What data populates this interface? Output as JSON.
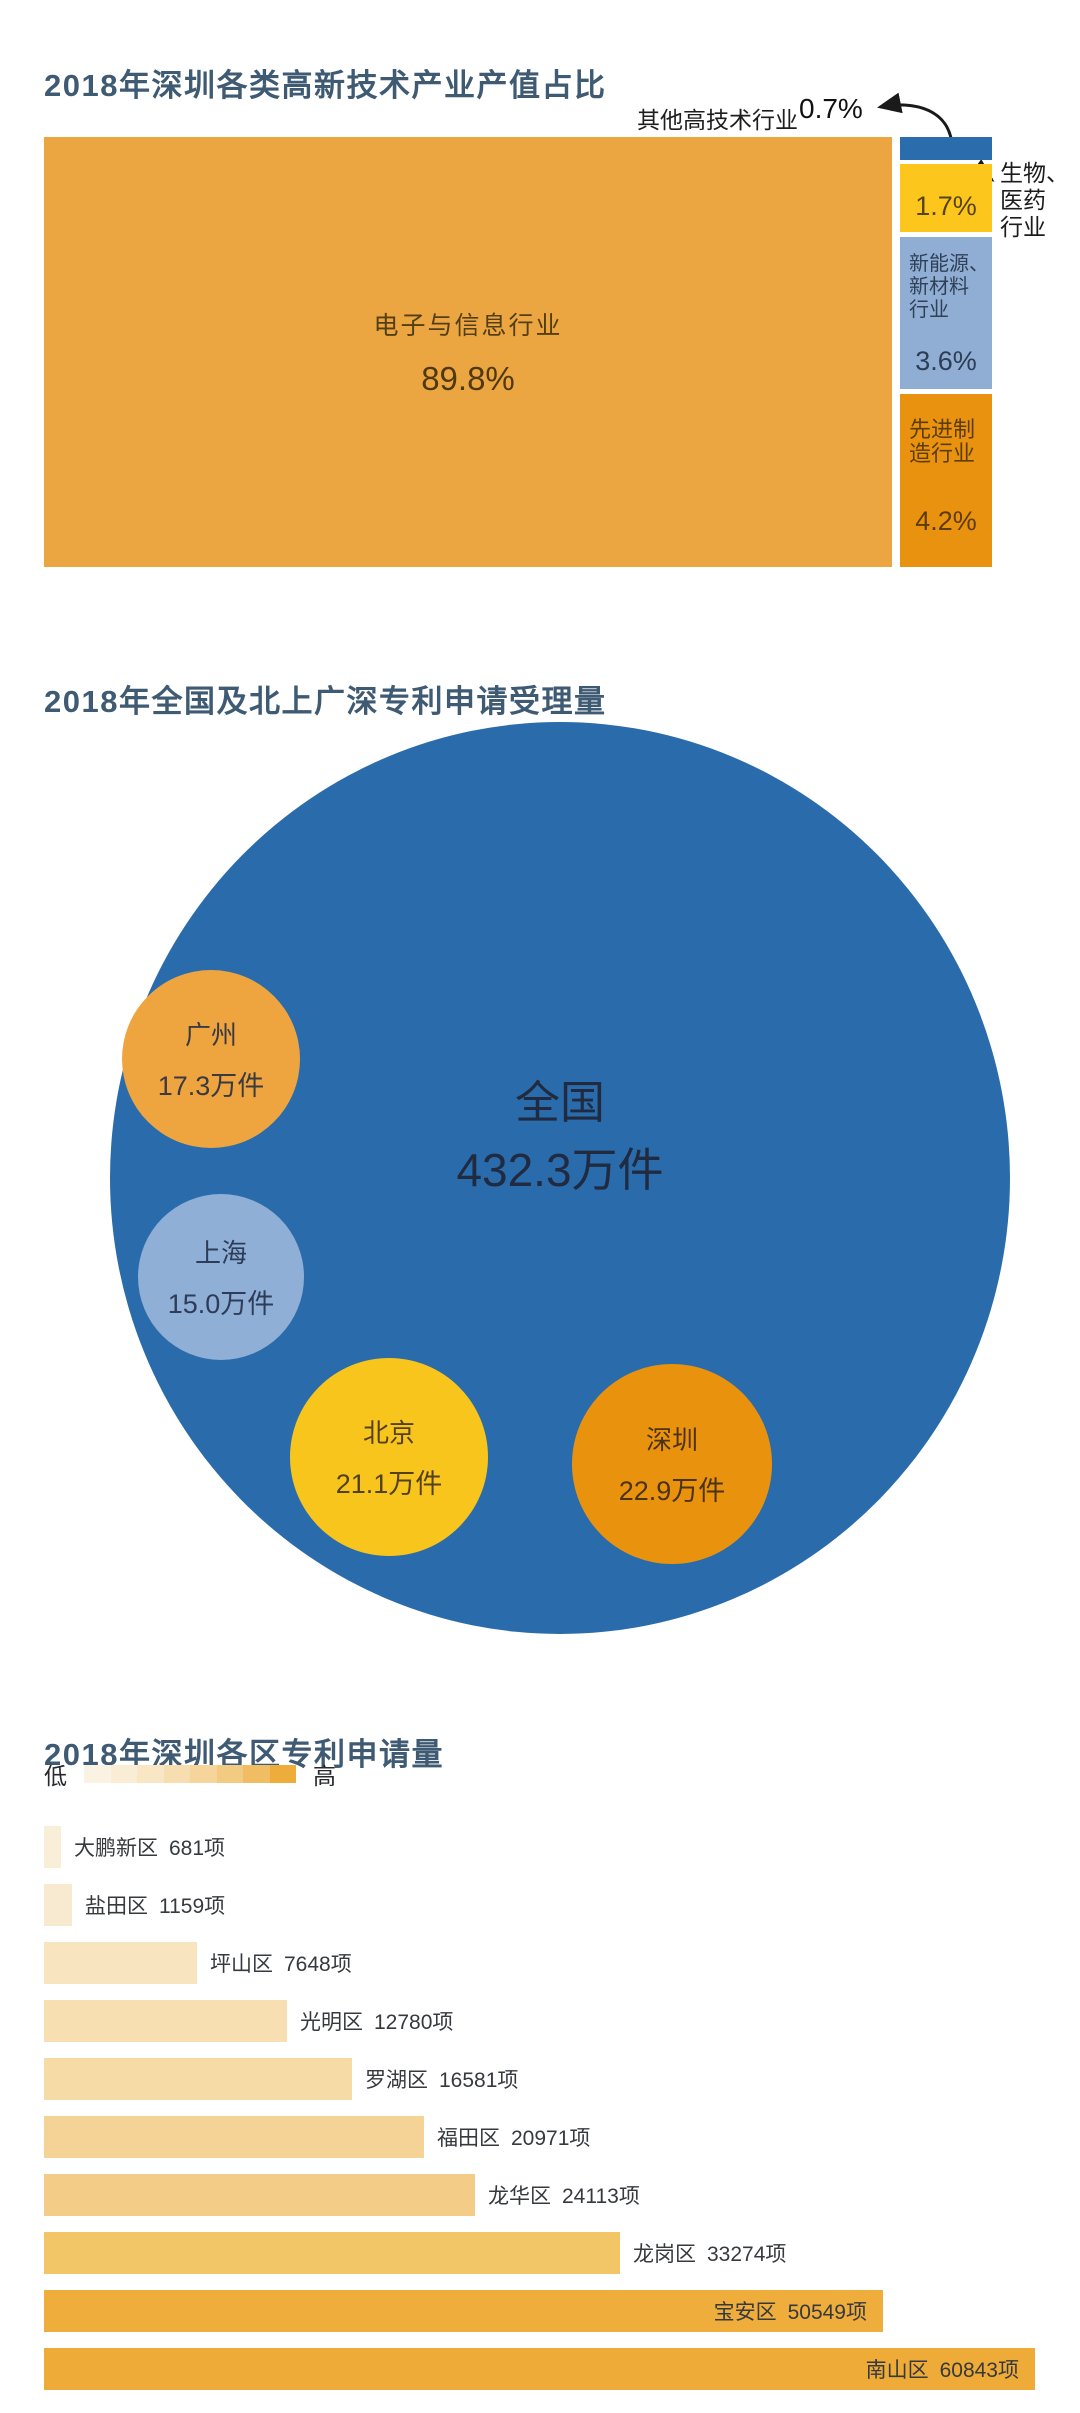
{
  "treemap_section": {
    "title": "2018年深圳各类高新技术产业产值占比",
    "annotation": {
      "label": "其他高技术行业",
      "value": "0.7%"
    },
    "main_block": {
      "label": "电子与信息行业",
      "value": "89.8%",
      "color": "#eca641"
    },
    "side_blocks": [
      {
        "name": "其他高技术行业",
        "value": "0.7%",
        "color": "#2b6dac"
      },
      {
        "name": "生物、医药行业",
        "value": "1.7%",
        "color": "#fcc61d",
        "external_label": "生物、\n医药\n行业"
      },
      {
        "name": "新能源、新材料行业",
        "value": "3.6%",
        "color": "#90aed4",
        "label_lines": "新能源、\n新材料\n行业"
      },
      {
        "name": "先进制造行业",
        "value": "4.2%",
        "color": "#e8920f",
        "label_lines": "先进制\n造行业"
      }
    ]
  },
  "bubble_section": {
    "title": "2018年全国及北上广深专利申请受理量",
    "bubbles": [
      {
        "name": "全国",
        "value": "432.3万件",
        "color": "#2a6cab"
      },
      {
        "name": "广州",
        "value": "17.3万件",
        "color": "#efa53f"
      },
      {
        "name": "上海",
        "value": "15.0万件",
        "color": "#90afd6"
      },
      {
        "name": "北京",
        "value": "21.1万件",
        "color": "#f8c51c"
      },
      {
        "name": "深圳",
        "value": "22.9万件",
        "color": "#e9920e"
      }
    ]
  },
  "bar_section": {
    "title": "2018年深圳各区专利申请量",
    "legend": {
      "low": "低",
      "high": "高",
      "colors": [
        "#faf2e3",
        "#f9edd6",
        "#f8e6c5",
        "#f6deb1",
        "#f5d59b",
        "#f3ca82",
        "#f0bd62",
        "#eeac3a"
      ]
    },
    "bars": [
      {
        "district": "大鹏新区",
        "value": 681,
        "display": "681项",
        "color": "#f9eed8"
      },
      {
        "district": "盐田区",
        "value": 1159,
        "display": "1159项",
        "color": "#f8ead0"
      },
      {
        "district": "坪山区",
        "value": 7648,
        "display": "7648项",
        "color": "#f8e5c0"
      },
      {
        "district": "光明区",
        "value": 12780,
        "display": "12780项",
        "color": "#f7dfb2"
      },
      {
        "district": "罗湖区",
        "value": 16581,
        "display": "16581项",
        "color": "#f6dba6"
      },
      {
        "district": "福田区",
        "value": 20971,
        "display": "20971项",
        "color": "#f5d397"
      },
      {
        "district": "龙华区",
        "value": 24113,
        "display": "24113项",
        "color": "#f3cd87"
      },
      {
        "district": "龙岗区",
        "value": 33274,
        "display": "33274项",
        "color": "#f2c566"
      },
      {
        "district": "宝安区",
        "value": 50549,
        "display": "50549项",
        "color": "#efad3c"
      },
      {
        "district": "南山区",
        "value": 60843,
        "display": "60843项",
        "color": "#eeab37"
      }
    ]
  },
  "chart_data": [
    {
      "type": "pie",
      "variant": "treemap",
      "title": "2018年深圳各类高新技术产业产值占比",
      "categories": [
        "电子与信息行业",
        "先进制造行业",
        "新能源、新材料行业",
        "生物、医药行业",
        "其他高技术行业"
      ],
      "values": [
        89.8,
        4.2,
        3.6,
        1.7,
        0.7
      ],
      "unit": "%",
      "colors": [
        "#eca641",
        "#e8920f",
        "#90aed4",
        "#fcc61d",
        "#2b6dac"
      ]
    },
    {
      "type": "scatter",
      "variant": "bubble",
      "title": "2018年全国及北上广深专利申请受理量",
      "categories": [
        "全国",
        "深圳",
        "北京",
        "广州",
        "上海"
      ],
      "values": [
        432.3,
        22.9,
        21.1,
        17.3,
        15.0
      ],
      "unit": "万件",
      "colors": [
        "#2a6cab",
        "#e9920e",
        "#f8c51c",
        "#efa53f",
        "#90afd6"
      ]
    },
    {
      "type": "bar",
      "orientation": "horizontal",
      "title": "2018年深圳各区专利申请量",
      "categories": [
        "大鹏新区",
        "盐田区",
        "坪山区",
        "光明区",
        "罗湖区",
        "福田区",
        "龙华区",
        "龙岗区",
        "宝安区",
        "南山区"
      ],
      "values": [
        681,
        1159,
        7648,
        12780,
        16581,
        20971,
        24113,
        33274,
        50549,
        60843
      ],
      "unit": "项",
      "legend_position": "top-left",
      "color_scale": {
        "low_label": "低",
        "high_label": "高"
      }
    }
  ]
}
